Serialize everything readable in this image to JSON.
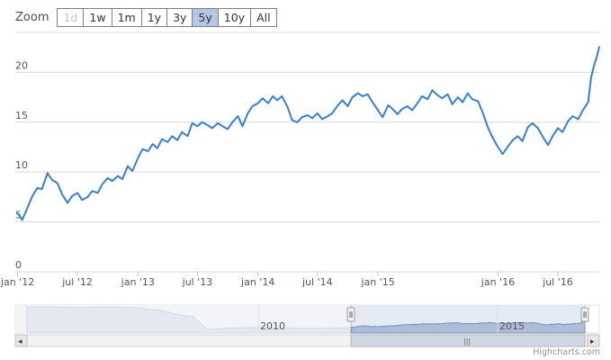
{
  "rangeSelector": {
    "label": "Zoom",
    "buttons": [
      {
        "label": "1d",
        "state": "disabled"
      },
      {
        "label": "1w",
        "state": "normal"
      },
      {
        "label": "1m",
        "state": "normal"
      },
      {
        "label": "1y",
        "state": "normal"
      },
      {
        "label": "3y",
        "state": "normal"
      },
      {
        "label": "5y",
        "state": "active"
      },
      {
        "label": "10y",
        "state": "normal"
      },
      {
        "label": "All",
        "state": "normal"
      }
    ]
  },
  "credits": "Highcharts.com",
  "colors": {
    "series": "#3a7fcc",
    "grid": "#d8d8d8",
    "navigatorSeries": "#a9b8cf",
    "navigatorMask": "#e6ebf5",
    "activeButton": "#b7c6e6"
  },
  "navigator": {
    "labels": [
      "2010",
      "2015"
    ],
    "scrollbar": {
      "left_arrow": "◂",
      "right_arrow": "▸",
      "grip": "|||"
    }
  },
  "chart_data": {
    "type": "line",
    "series": [
      {
        "values": [
          [
            "2012-01-01",
            5.9
          ],
          [
            "2012-01-15",
            5.2
          ],
          [
            "2012-02-01",
            6.5
          ],
          [
            "2012-02-15",
            7.6
          ],
          [
            "2012-03-01",
            8.4
          ],
          [
            "2012-03-15",
            8.3
          ],
          [
            "2012-04-01",
            9.9
          ],
          [
            "2012-04-15",
            9.2
          ],
          [
            "2012-05-01",
            8.9
          ],
          [
            "2012-05-15",
            7.8
          ],
          [
            "2012-06-01",
            6.9
          ],
          [
            "2012-06-15",
            7.6
          ],
          [
            "2012-07-01",
            7.9
          ],
          [
            "2012-07-15",
            7.2
          ],
          [
            "2012-08-01",
            7.5
          ],
          [
            "2012-08-15",
            8.1
          ],
          [
            "2012-09-01",
            7.9
          ],
          [
            "2012-09-15",
            8.8
          ],
          [
            "2012-10-01",
            9.4
          ],
          [
            "2012-10-15",
            9.1
          ],
          [
            "2012-11-01",
            9.6
          ],
          [
            "2012-11-15",
            9.3
          ],
          [
            "2012-12-01",
            10.6
          ],
          [
            "2012-12-15",
            10.1
          ],
          [
            "2013-01-01",
            11.4
          ],
          [
            "2013-01-15",
            12.3
          ],
          [
            "2013-02-01",
            12.1
          ],
          [
            "2013-02-15",
            12.8
          ],
          [
            "2013-03-01",
            12.4
          ],
          [
            "2013-03-15",
            13.3
          ],
          [
            "2013-04-01",
            13.0
          ],
          [
            "2013-04-15",
            13.6
          ],
          [
            "2013-05-01",
            13.2
          ],
          [
            "2013-05-15",
            14.0
          ],
          [
            "2013-06-01",
            13.6
          ],
          [
            "2013-06-15",
            14.9
          ],
          [
            "2013-07-01",
            14.6
          ],
          [
            "2013-07-15",
            15.0
          ],
          [
            "2013-08-01",
            14.7
          ],
          [
            "2013-08-15",
            14.4
          ],
          [
            "2013-09-01",
            14.9
          ],
          [
            "2013-09-15",
            14.6
          ],
          [
            "2013-10-01",
            14.3
          ],
          [
            "2013-10-15",
            15.0
          ],
          [
            "2013-11-01",
            15.6
          ],
          [
            "2013-11-15",
            14.6
          ],
          [
            "2013-12-01",
            15.9
          ],
          [
            "2013-12-15",
            16.6
          ],
          [
            "2014-01-01",
            16.9
          ],
          [
            "2014-01-15",
            17.4
          ],
          [
            "2014-02-01",
            16.9
          ],
          [
            "2014-02-15",
            17.6
          ],
          [
            "2014-03-01",
            17.2
          ],
          [
            "2014-03-15",
            17.6
          ],
          [
            "2014-04-01",
            16.5
          ],
          [
            "2014-04-15",
            15.2
          ],
          [
            "2014-05-01",
            15.0
          ],
          [
            "2014-05-15",
            15.5
          ],
          [
            "2014-06-01",
            15.7
          ],
          [
            "2014-06-15",
            15.4
          ],
          [
            "2014-07-01",
            15.9
          ],
          [
            "2014-07-15",
            15.3
          ],
          [
            "2014-08-01",
            15.6
          ],
          [
            "2014-08-15",
            15.9
          ],
          [
            "2014-09-01",
            16.7
          ],
          [
            "2014-09-15",
            17.2
          ],
          [
            "2014-10-01",
            16.6
          ],
          [
            "2014-10-15",
            17.5
          ],
          [
            "2014-11-01",
            17.9
          ],
          [
            "2014-11-15",
            17.6
          ],
          [
            "2014-12-01",
            17.8
          ],
          [
            "2014-12-15",
            17.0
          ],
          [
            "2015-01-01",
            16.2
          ],
          [
            "2015-01-15",
            15.5
          ],
          [
            "2015-02-01",
            16.7
          ],
          [
            "2015-02-15",
            16.3
          ],
          [
            "2015-03-01",
            15.8
          ],
          [
            "2015-03-15",
            16.3
          ],
          [
            "2015-04-01",
            16.6
          ],
          [
            "2015-04-15",
            16.2
          ],
          [
            "2015-05-01",
            16.9
          ],
          [
            "2015-05-15",
            17.6
          ],
          [
            "2015-06-01",
            17.3
          ],
          [
            "2015-06-15",
            18.2
          ],
          [
            "2015-07-01",
            17.7
          ],
          [
            "2015-07-15",
            17.4
          ],
          [
            "2015-08-01",
            17.8
          ],
          [
            "2015-08-15",
            16.8
          ],
          [
            "2015-09-01",
            17.5
          ],
          [
            "2015-09-15",
            17.0
          ],
          [
            "2015-10-01",
            17.9
          ],
          [
            "2015-10-15",
            17.3
          ],
          [
            "2015-11-01",
            17.1
          ],
          [
            "2015-11-15",
            16.0
          ],
          [
            "2015-12-01",
            14.5
          ],
          [
            "2015-12-15",
            13.5
          ],
          [
            "2016-01-01",
            12.5
          ],
          [
            "2016-01-15",
            11.8
          ],
          [
            "2016-02-01",
            12.6
          ],
          [
            "2016-02-15",
            13.2
          ],
          [
            "2016-03-01",
            13.6
          ],
          [
            "2016-03-15",
            13.1
          ],
          [
            "2016-04-01",
            14.5
          ],
          [
            "2016-04-15",
            14.9
          ],
          [
            "2016-05-01",
            14.4
          ],
          [
            "2016-05-15",
            13.6
          ],
          [
            "2016-06-01",
            12.7
          ],
          [
            "2016-06-15",
            13.6
          ],
          [
            "2016-07-01",
            14.4
          ],
          [
            "2016-07-15",
            14.0
          ],
          [
            "2016-08-01",
            15.1
          ],
          [
            "2016-08-15",
            15.6
          ],
          [
            "2016-09-01",
            15.3
          ],
          [
            "2016-09-15",
            16.2
          ],
          [
            "2016-10-01",
            17.0
          ],
          [
            "2016-10-10",
            19.5
          ],
          [
            "2016-10-20",
            20.8
          ],
          [
            "2016-10-28",
            21.6
          ],
          [
            "2016-11-04",
            22.6
          ]
        ]
      }
    ],
    "y_ticks": [
      "0",
      "5",
      "10",
      "15",
      "20"
    ],
    "ylim": [
      0,
      24
    ],
    "x_ticks": [
      {
        "label": "jan '12",
        "date": "2012-01-01"
      },
      {
        "label": "jul '12",
        "date": "2012-07-01"
      },
      {
        "label": "jan '13",
        "date": "2013-01-01"
      },
      {
        "label": "jul '13",
        "date": "2013-07-01"
      },
      {
        "label": "jan '14",
        "date": "2014-01-01"
      },
      {
        "label": "jul '14",
        "date": "2014-07-01"
      },
      {
        "label": "jan '15",
        "date": "2015-01-01"
      },
      {
        "label": "jan '16",
        "date": "2016-01-01"
      },
      {
        "label": "jul '16",
        "date": "2016-07-01"
      }
    ],
    "xlim": [
      "2011-12-25",
      "2016-11-04"
    ],
    "grid": true,
    "legend": "none"
  }
}
